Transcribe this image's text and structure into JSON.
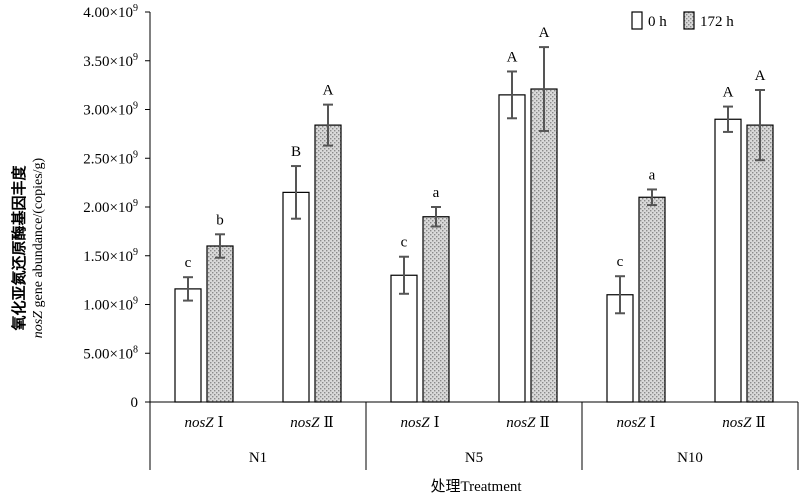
{
  "chart_data": {
    "type": "bar",
    "ylabel_zh": "氧化亚氮还原酶基因丰度",
    "ylabel_gene": "nosZ",
    "ylabel_rest": " gene abundance/(copies/g)",
    "xlabel": "处理Treatment",
    "ylim": [
      0,
      4000000000
    ],
    "yticks": [
      {
        "value": 0,
        "mantissa": "0",
        "exp": ""
      },
      {
        "value": 500000000,
        "mantissa": "5.00×10",
        "exp": "8"
      },
      {
        "value": 1000000000,
        "mantissa": "1.00×10",
        "exp": "9"
      },
      {
        "value": 1500000000,
        "mantissa": "1.50×10",
        "exp": "9"
      },
      {
        "value": 2000000000,
        "mantissa": "2.00×10",
        "exp": "9"
      },
      {
        "value": 2500000000,
        "mantissa": "2.50×10",
        "exp": "9"
      },
      {
        "value": 3000000000,
        "mantissa": "3.00×10",
        "exp": "9"
      },
      {
        "value": 3500000000,
        "mantissa": "3.50×10",
        "exp": "9"
      },
      {
        "value": 4000000000,
        "mantissa": "4.00×10",
        "exp": "9"
      }
    ],
    "legend_position": "top-right",
    "series": [
      {
        "name": "0 h",
        "color": "#ffffff"
      },
      {
        "name": "172 h",
        "color": "#c8c8c8"
      }
    ],
    "groups": [
      {
        "name": "N1",
        "subgroups": [
          {
            "gene": "nosZ",
            "roman": "Ⅰ",
            "values": [
              1160000000,
              1600000000
            ],
            "errors": [
              120000000,
              120000000
            ],
            "letters": [
              "c",
              "b"
            ]
          },
          {
            "gene": "nosZ",
            "roman": "Ⅱ",
            "values": [
              2150000000,
              2840000000
            ],
            "errors": [
              270000000,
              210000000
            ],
            "letters": [
              "B",
              "A"
            ]
          }
        ]
      },
      {
        "name": "N5",
        "subgroups": [
          {
            "gene": "nosZ",
            "roman": "Ⅰ",
            "values": [
              1300000000,
              1900000000
            ],
            "errors": [
              190000000,
              100000000
            ],
            "letters": [
              "c",
              "a"
            ]
          },
          {
            "gene": "nosZ",
            "roman": "Ⅱ",
            "values": [
              3150000000,
              3210000000
            ],
            "errors": [
              240000000,
              430000000
            ],
            "letters": [
              "A",
              "A"
            ]
          }
        ]
      },
      {
        "name": "N10",
        "subgroups": [
          {
            "gene": "nosZ",
            "roman": "Ⅰ",
            "values": [
              1100000000,
              2100000000
            ],
            "errors": [
              190000000,
              80000000
            ],
            "letters": [
              "c",
              "a"
            ]
          },
          {
            "gene": "nosZ",
            "roman": "Ⅱ",
            "values": [
              2900000000,
              2840000000
            ],
            "errors": [
              130000000,
              360000000
            ],
            "letters": [
              "A",
              "A"
            ]
          }
        ]
      }
    ]
  }
}
